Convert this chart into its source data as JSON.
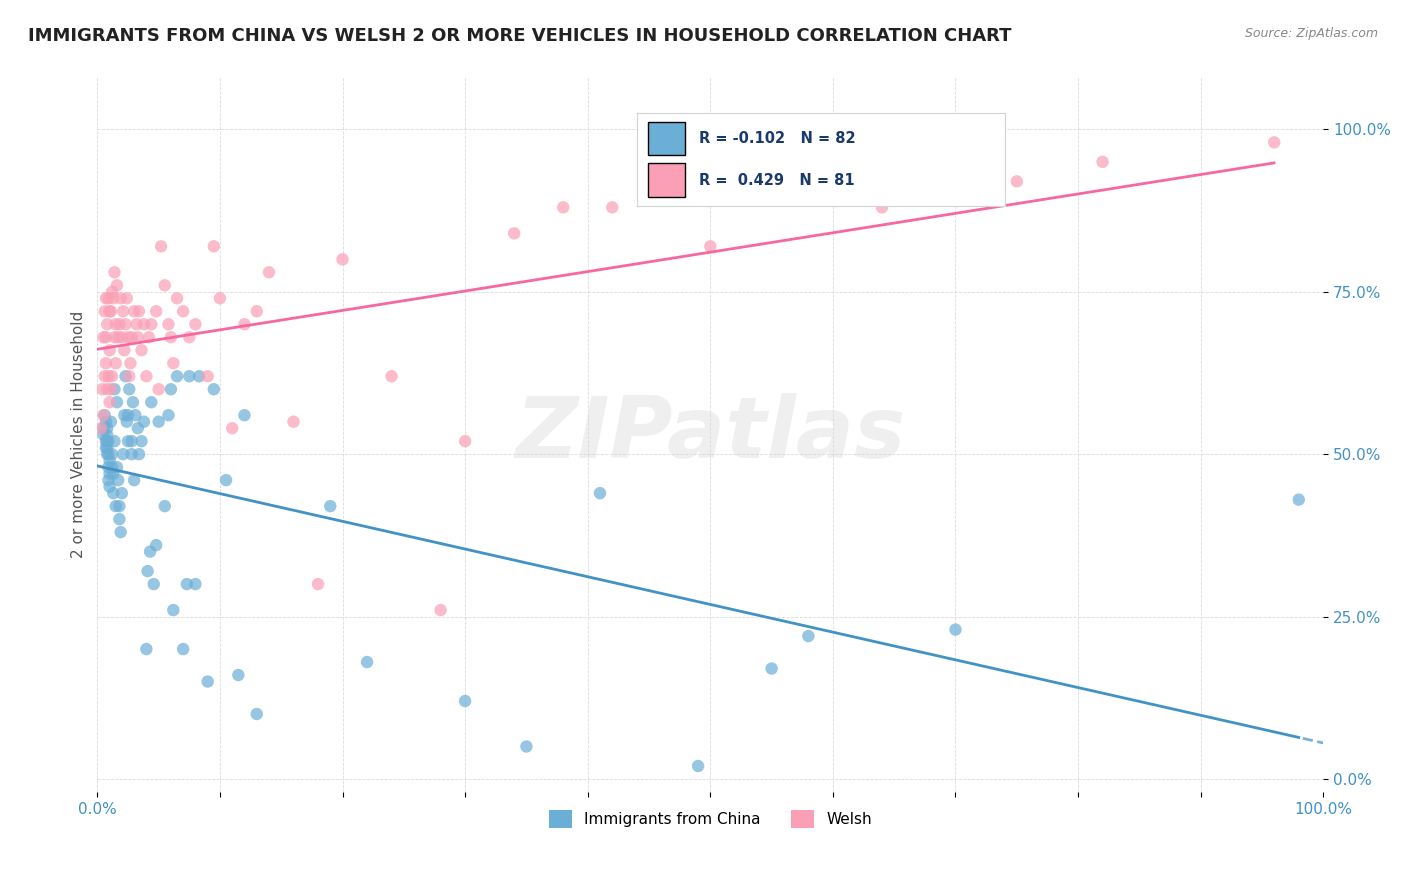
{
  "title": "IMMIGRANTS FROM CHINA VS WELSH 2 OR MORE VEHICLES IN HOUSEHOLD CORRELATION CHART",
  "source": "Source: ZipAtlas.com",
  "ylabel": "2 or more Vehicles in Household",
  "ytick_labels": [
    "0.0%",
    "25.0%",
    "50.0%",
    "75.0%",
    "100.0%"
  ],
  "ytick_values": [
    0,
    0.25,
    0.5,
    0.75,
    1.0
  ],
  "xlim": [
    0,
    1.0
  ],
  "ylim": [
    -0.02,
    1.08
  ],
  "legend_labels": [
    "Immigrants from China",
    "Welsh"
  ],
  "R_china": -0.102,
  "N_china": 82,
  "R_welsh": 0.429,
  "N_welsh": 81,
  "color_china": "#6baed6",
  "color_welsh": "#fa9fb5",
  "color_china_line": "#4292c6",
  "color_welsh_line": "#f768a1",
  "marker_size": 80,
  "marker_alpha": 0.7,
  "background_color": "#ffffff",
  "watermark": "ZIPatlas",
  "china_x": [
    0.005,
    0.005,
    0.006,
    0.007,
    0.007,
    0.007,
    0.008,
    0.008,
    0.008,
    0.008,
    0.008,
    0.009,
    0.009,
    0.009,
    0.009,
    0.01,
    0.01,
    0.01,
    0.011,
    0.012,
    0.012,
    0.013,
    0.013,
    0.014,
    0.014,
    0.015,
    0.016,
    0.016,
    0.017,
    0.018,
    0.018,
    0.019,
    0.02,
    0.021,
    0.022,
    0.023,
    0.024,
    0.025,
    0.025,
    0.026,
    0.028,
    0.028,
    0.029,
    0.03,
    0.031,
    0.033,
    0.034,
    0.036,
    0.038,
    0.04,
    0.041,
    0.043,
    0.044,
    0.046,
    0.048,
    0.05,
    0.055,
    0.058,
    0.06,
    0.062,
    0.065,
    0.07,
    0.073,
    0.075,
    0.08,
    0.083,
    0.09,
    0.095,
    0.105,
    0.115,
    0.12,
    0.13,
    0.19,
    0.22,
    0.3,
    0.35,
    0.41,
    0.49,
    0.55,
    0.58,
    0.7,
    0.98
  ],
  "china_y": [
    0.53,
    0.54,
    0.56,
    0.51,
    0.52,
    0.55,
    0.5,
    0.51,
    0.52,
    0.53,
    0.54,
    0.46,
    0.48,
    0.5,
    0.52,
    0.45,
    0.47,
    0.49,
    0.55,
    0.48,
    0.5,
    0.44,
    0.47,
    0.52,
    0.6,
    0.42,
    0.48,
    0.58,
    0.46,
    0.4,
    0.42,
    0.38,
    0.44,
    0.5,
    0.56,
    0.62,
    0.55,
    0.52,
    0.56,
    0.6,
    0.5,
    0.52,
    0.58,
    0.46,
    0.56,
    0.54,
    0.5,
    0.52,
    0.55,
    0.2,
    0.32,
    0.35,
    0.58,
    0.3,
    0.36,
    0.55,
    0.42,
    0.56,
    0.6,
    0.26,
    0.62,
    0.2,
    0.3,
    0.62,
    0.3,
    0.62,
    0.15,
    0.6,
    0.46,
    0.16,
    0.56,
    0.1,
    0.42,
    0.18,
    0.12,
    0.05,
    0.44,
    0.02,
    0.17,
    0.22,
    0.23,
    0.43
  ],
  "welsh_x": [
    0.003,
    0.004,
    0.005,
    0.005,
    0.006,
    0.006,
    0.007,
    0.007,
    0.007,
    0.008,
    0.008,
    0.009,
    0.009,
    0.01,
    0.01,
    0.01,
    0.011,
    0.011,
    0.012,
    0.012,
    0.013,
    0.014,
    0.014,
    0.015,
    0.015,
    0.016,
    0.017,
    0.018,
    0.019,
    0.02,
    0.021,
    0.022,
    0.023,
    0.024,
    0.025,
    0.026,
    0.027,
    0.028,
    0.03,
    0.032,
    0.033,
    0.034,
    0.036,
    0.038,
    0.04,
    0.042,
    0.044,
    0.048,
    0.05,
    0.052,
    0.055,
    0.058,
    0.06,
    0.062,
    0.065,
    0.07,
    0.075,
    0.08,
    0.09,
    0.095,
    0.1,
    0.11,
    0.12,
    0.13,
    0.14,
    0.16,
    0.18,
    0.2,
    0.24,
    0.28,
    0.3,
    0.34,
    0.38,
    0.42,
    0.5,
    0.54,
    0.64,
    0.7,
    0.75,
    0.82,
    0.96
  ],
  "welsh_y": [
    0.54,
    0.6,
    0.56,
    0.68,
    0.62,
    0.72,
    0.64,
    0.68,
    0.74,
    0.6,
    0.7,
    0.62,
    0.74,
    0.58,
    0.66,
    0.72,
    0.6,
    0.72,
    0.62,
    0.75,
    0.74,
    0.68,
    0.78,
    0.64,
    0.7,
    0.76,
    0.68,
    0.7,
    0.74,
    0.68,
    0.72,
    0.66,
    0.7,
    0.74,
    0.68,
    0.62,
    0.64,
    0.68,
    0.72,
    0.7,
    0.68,
    0.72,
    0.66,
    0.7,
    0.62,
    0.68,
    0.7,
    0.72,
    0.6,
    0.82,
    0.76,
    0.7,
    0.68,
    0.64,
    0.74,
    0.72,
    0.68,
    0.7,
    0.62,
    0.82,
    0.74,
    0.54,
    0.7,
    0.72,
    0.78,
    0.55,
    0.3,
    0.8,
    0.62,
    0.26,
    0.52,
    0.84,
    0.88,
    0.88,
    0.82,
    0.9,
    0.88,
    0.9,
    0.92,
    0.95,
    0.98
  ]
}
